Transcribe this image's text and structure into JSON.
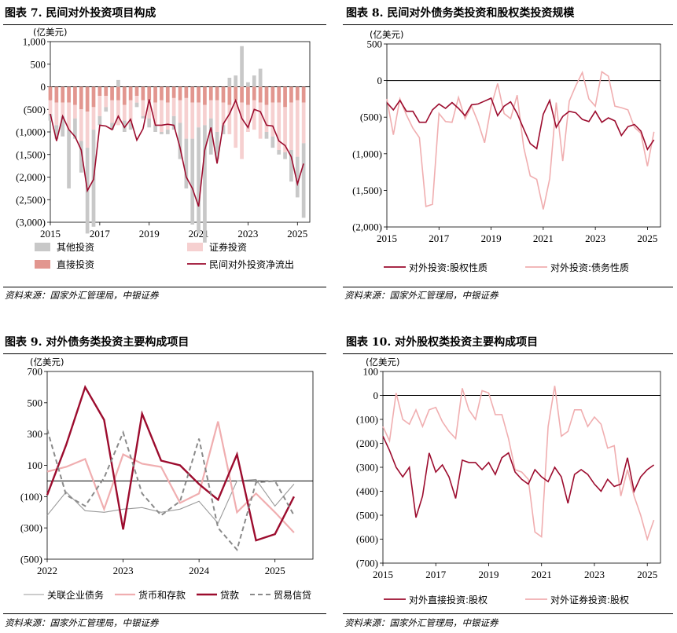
{
  "colors": {
    "dark_red": "#9c0c2e",
    "light_pink": "#f0aeb0",
    "grey_bar": "#c8c8c8",
    "pink_bar": "#f6d0d0",
    "salmon_bar": "#e2968f",
    "grey_line": "#9a9a9a",
    "dashed_grey": "#8a8a8a"
  },
  "panels": [
    {
      "title": "图表 7. 民间对外投资项目构成",
      "source": "资料来源：国家外汇管理局，中银证券"
    },
    {
      "title": "图表 8. 民间对外债务类投资和股权类投资规模",
      "source": "资料来源：国家外汇管理局，中银证券"
    },
    {
      "title": "图表 9. 对外债务类投资主要构成项目",
      "source": "资料来源：国家外汇管理局，中银证券"
    },
    {
      "title": "图表 10. 对外股权类投资主要构成项目",
      "source": "资料来源：国家外汇管理局，中银证券"
    }
  ],
  "chart_data": [
    {
      "type": "bar",
      "unit": "(亿美元)",
      "ylim": [
        -3000,
        1000
      ],
      "yticks": [
        1000,
        500,
        0,
        -500,
        -1000,
        -1500,
        -2000,
        -2500,
        -3000
      ],
      "ytick_labels": [
        "1,000",
        "500",
        "0",
        "(500)",
        "(1,000)",
        "(1,500)",
        "(2,000)",
        "(2,500)",
        "(3,000)"
      ],
      "xlim": [
        2015,
        2025.5
      ],
      "xticks": [
        "2015",
        "2017",
        "2019",
        "2021",
        "2023",
        "2025"
      ],
      "x": [
        2015.0,
        2015.25,
        2015.5,
        2015.75,
        2016.0,
        2016.25,
        2016.5,
        2016.75,
        2017.0,
        2017.25,
        2017.5,
        2017.75,
        2018.0,
        2018.25,
        2018.5,
        2018.75,
        2019.0,
        2019.25,
        2019.5,
        2019.75,
        2020.0,
        2020.25,
        2020.5,
        2020.75,
        2021.0,
        2021.25,
        2021.5,
        2021.75,
        2022.0,
        2022.25,
        2022.5,
        2022.75,
        2023.0,
        2023.25,
        2023.5,
        2023.75,
        2024.0,
        2024.25,
        2024.5,
        2024.75,
        2025.0,
        2025.25
      ],
      "series": [
        {
          "name": "其他投资",
          "kind": "bar",
          "values": [
            -150,
            -300,
            -450,
            -1300,
            -450,
            -700,
            -1900,
            -2150,
            -200,
            -100,
            -150,
            150,
            -250,
            -150,
            -100,
            -50,
            -200,
            -150,
            -50,
            -100,
            -300,
            -800,
            -1100,
            -1900,
            -2350,
            -2600,
            -800,
            -600,
            -200,
            200,
            250,
            900,
            100,
            250,
            400,
            -150,
            -250,
            -100,
            -150,
            -700,
            -900,
            -1650
          ]
        },
        {
          "name": "证券投资",
          "kind": "bar",
          "values": [
            -300,
            -500,
            -300,
            -600,
            -300,
            -700,
            -800,
            -500,
            -450,
            -250,
            -500,
            -550,
            -350,
            -500,
            -150,
            -350,
            -400,
            -500,
            -700,
            -600,
            -400,
            -500,
            -900,
            -800,
            -550,
            -450,
            -400,
            -700,
            -500,
            -650,
            -1050,
            -1250,
            -600,
            -650,
            -800,
            -600,
            -750,
            -1050,
            -1000,
            -1050,
            -1250,
            -900
          ]
        },
        {
          "name": "直接投资",
          "kind": "bar",
          "values": [
            -300,
            -350,
            -350,
            -350,
            -400,
            -500,
            -550,
            -450,
            -200,
            -200,
            -300,
            -300,
            -400,
            -300,
            -200,
            -300,
            -300,
            -350,
            -300,
            -350,
            -250,
            -300,
            -250,
            -350,
            -350,
            -400,
            -300,
            -300,
            -350,
            -400,
            -300,
            -350,
            -400,
            -300,
            -350,
            -400,
            -350,
            -350,
            -450,
            -350,
            -300,
            -350
          ]
        },
        {
          "name": "民间对外投资净流出",
          "kind": "line",
          "values": [
            -600,
            -1200,
            -650,
            -950,
            -1100,
            -1400,
            -2300,
            -2050,
            -850,
            -870,
            -950,
            -650,
            -900,
            -720,
            -1180,
            -930,
            -280,
            -850,
            -850,
            -830,
            -850,
            -1350,
            -2000,
            -2250,
            -2650,
            -1400,
            -900,
            -1700,
            -820,
            -600,
            -300,
            -700,
            -900,
            -500,
            -550,
            -850,
            -870,
            -1200,
            -1300,
            -1550,
            -2150,
            -1700
          ]
        }
      ],
      "legend": [
        "其他投资",
        "证券投资",
        "直接投资",
        "民间对外投资净流出"
      ]
    },
    {
      "type": "line",
      "unit": "(亿美元)",
      "ylim": [
        -2000,
        500
      ],
      "yticks": [
        500,
        0,
        -500,
        -1000,
        -1500,
        -2000
      ],
      "ytick_labels": [
        "500",
        "0",
        "(500)",
        "(1,000)",
        "(1,500)",
        "(2,000)"
      ],
      "xlim": [
        2015,
        2025.5
      ],
      "xticks": [
        "2015",
        "2017",
        "2019",
        "2021",
        "2023",
        "2025"
      ],
      "x": [
        2015.0,
        2015.25,
        2015.5,
        2015.75,
        2016.0,
        2016.25,
        2016.5,
        2016.75,
        2017.0,
        2017.25,
        2017.5,
        2017.75,
        2018.0,
        2018.25,
        2018.5,
        2018.75,
        2019.0,
        2019.25,
        2019.5,
        2019.75,
        2020.0,
        2020.25,
        2020.5,
        2020.75,
        2021.0,
        2021.25,
        2021.5,
        2021.75,
        2022.0,
        2022.25,
        2022.5,
        2022.75,
        2023.0,
        2023.25,
        2023.5,
        2023.75,
        2024.0,
        2024.25,
        2024.5,
        2024.75,
        2025.0,
        2025.25
      ],
      "series": [
        {
          "name": "对外投资:股权性质",
          "values": [
            -300,
            -400,
            -270,
            -420,
            -420,
            -570,
            -570,
            -400,
            -320,
            -380,
            -300,
            -380,
            -480,
            -330,
            -320,
            -280,
            -240,
            -480,
            -350,
            -290,
            -450,
            -660,
            -860,
            -930,
            -460,
            -270,
            -640,
            -490,
            -420,
            -440,
            -530,
            -560,
            -420,
            -570,
            -510,
            -550,
            -750,
            -630,
            -600,
            -690,
            -940,
            -810
          ]
        },
        {
          "name": "对外投资:债务性质",
          "values": [
            -250,
            -740,
            -250,
            -470,
            -650,
            -780,
            -1720,
            -1690,
            -450,
            -560,
            -570,
            -230,
            -520,
            -350,
            -570,
            -850,
            -350,
            -40,
            -450,
            -520,
            -200,
            -910,
            -1300,
            -1350,
            -1760,
            -1340,
            -300,
            -1100,
            -280,
            -70,
            110,
            -250,
            -350,
            120,
            60,
            -350,
            -370,
            -400,
            -640,
            -720,
            -1170,
            -700
          ]
        }
      ],
      "legend": [
        "对外投资:股权性质",
        "对外投资:债务性质"
      ]
    },
    {
      "type": "line",
      "unit": "(亿美元)",
      "ylim": [
        -500,
        700
      ],
      "yticks": [
        700,
        500,
        300,
        100,
        -100,
        -300,
        -500
      ],
      "ytick_labels": [
        "700",
        "500",
        "300",
        "100",
        "(100)",
        "(300)",
        "(500)"
      ],
      "xlim": [
        2022,
        2025.5
      ],
      "xticks": [
        "2022",
        "2023",
        "2024",
        "2025"
      ],
      "x": [
        2022.0,
        2022.25,
        2022.5,
        2022.75,
        2023.0,
        2023.25,
        2023.5,
        2023.75,
        2024.0,
        2024.25,
        2024.5,
        2024.75,
        2025.0,
        2025.25
      ],
      "series": [
        {
          "name": "关联企业债务",
          "style": "thin-grey",
          "values": [
            -220,
            -70,
            -190,
            -200,
            -180,
            -170,
            -200,
            -180,
            -130,
            -270,
            0,
            10,
            -160,
            -20
          ]
        },
        {
          "name": "货币和存款",
          "style": "pink",
          "values": [
            60,
            90,
            140,
            -180,
            170,
            110,
            90,
            -140,
            -80,
            380,
            -200,
            -80,
            -200,
            -330
          ]
        },
        {
          "name": "贷款",
          "style": "dark-red",
          "values": [
            -90,
            230,
            600,
            390,
            -310,
            430,
            130,
            100,
            -20,
            -120,
            170,
            -380,
            -340,
            -100
          ]
        },
        {
          "name": "贸易信贷",
          "style": "dashed",
          "values": [
            330,
            -90,
            -160,
            20,
            310,
            -80,
            -220,
            -130,
            270,
            -300,
            -440,
            -10,
            0,
            -220
          ]
        }
      ],
      "legend": [
        "关联企业债务",
        "货币和存款",
        "贷款",
        "贸易信贷"
      ]
    },
    {
      "type": "line",
      "unit": "(亿美元)",
      "ylim": [
        -700,
        100
      ],
      "yticks": [
        100,
        0,
        -100,
        -200,
        -300,
        -400,
        -500,
        -600,
        -700
      ],
      "ytick_labels": [
        "100",
        "0",
        "(100)",
        "(200)",
        "(300)",
        "(400)",
        "(500)",
        "(600)",
        "(700)"
      ],
      "xlim": [
        2015,
        2025.5
      ],
      "xticks": [
        "2015",
        "2017",
        "2019",
        "2021",
        "2023",
        "2025"
      ],
      "x": [
        2015.0,
        2015.25,
        2015.5,
        2015.75,
        2016.0,
        2016.25,
        2016.5,
        2016.75,
        2017.0,
        2017.25,
        2017.5,
        2017.75,
        2018.0,
        2018.25,
        2018.5,
        2018.75,
        2019.0,
        2019.25,
        2019.5,
        2019.75,
        2020.0,
        2020.25,
        2020.5,
        2020.75,
        2021.0,
        2021.25,
        2021.5,
        2021.75,
        2022.0,
        2022.25,
        2022.5,
        2022.75,
        2023.0,
        2023.25,
        2023.5,
        2023.75,
        2024.0,
        2024.25,
        2024.5,
        2024.75,
        2025.0,
        2025.25
      ],
      "series": [
        {
          "name": "对外直接投资:股权",
          "values": [
            -170,
            -230,
            -300,
            -340,
            -300,
            -510,
            -420,
            -240,
            -320,
            -290,
            -340,
            -430,
            -270,
            -280,
            -280,
            -310,
            -280,
            -330,
            -260,
            -240,
            -320,
            -350,
            -370,
            -310,
            -340,
            -360,
            -300,
            -340,
            -450,
            -330,
            -310,
            -330,
            -370,
            -400,
            -350,
            -380,
            -370,
            -260,
            -400,
            -340,
            -310,
            -290
          ]
        },
        {
          "name": "对外证券投资:股权",
          "values": [
            -130,
            -190,
            10,
            -100,
            -120,
            -60,
            -130,
            -60,
            -50,
            -110,
            -150,
            -180,
            30,
            -60,
            -100,
            20,
            10,
            -80,
            -80,
            -180,
            -310,
            -320,
            -350,
            -570,
            -590,
            -130,
            40,
            -170,
            -150,
            -60,
            -60,
            -130,
            -90,
            -120,
            -220,
            -210,
            -420,
            -310,
            -420,
            -500,
            -600,
            -520
          ]
        }
      ],
      "legend": [
        "对外直接投资:股权",
        "对外证券投资:股权"
      ]
    }
  ]
}
